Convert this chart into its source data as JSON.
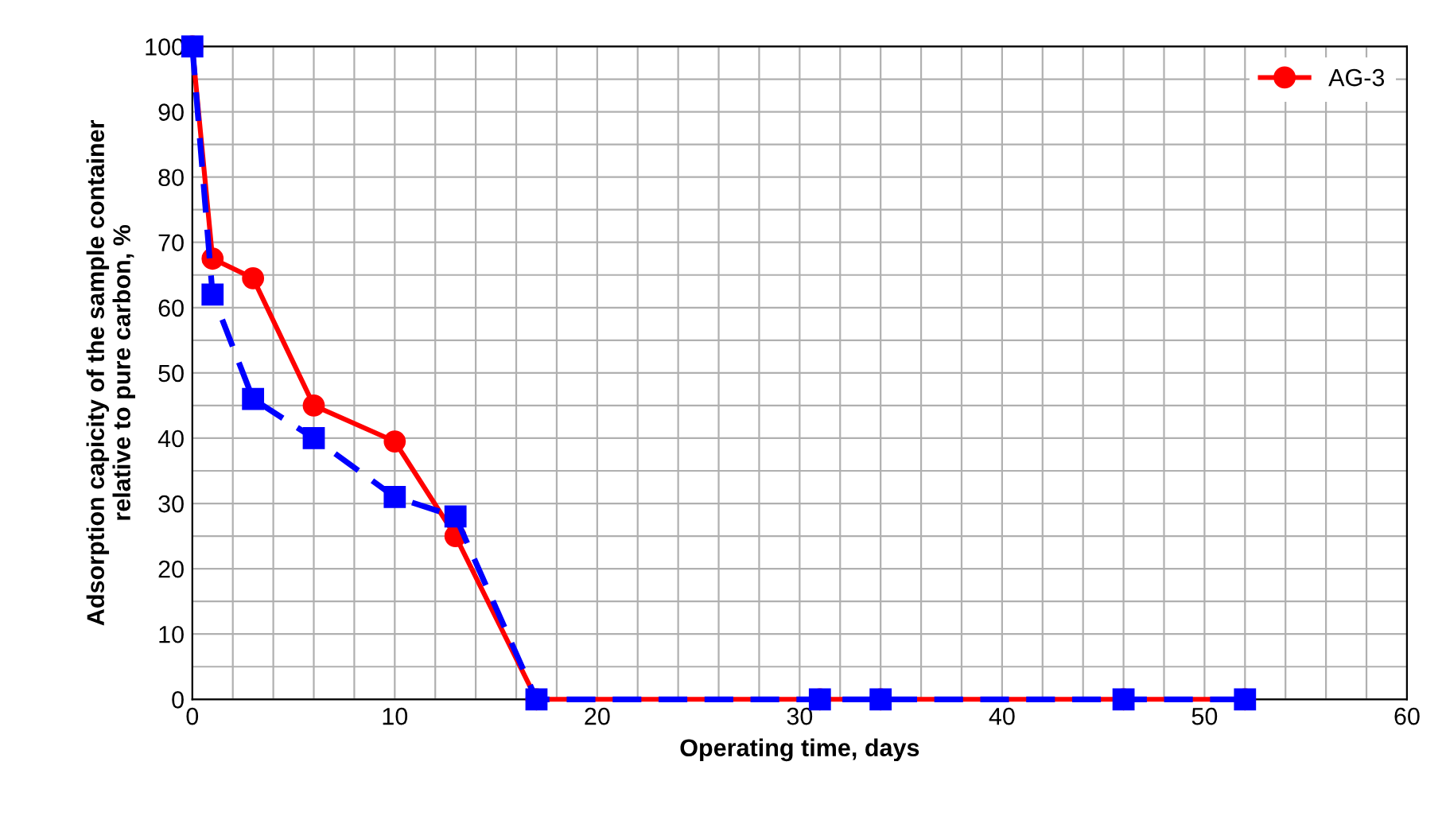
{
  "chart_data": {
    "type": "line",
    "xlabel": "Operating time, days",
    "ylabel": "Adsorption capicity of the sample container\nrelative to pure carbon, %",
    "xlim": [
      0,
      60
    ],
    "ylim": [
      0,
      100
    ],
    "xticks": [
      0,
      {
        "value": 2,
        "label": null
      },
      {
        "value": 4,
        "label": null
      },
      {
        "value": 6,
        "label": null
      },
      {
        "value": 8,
        "label": null
      },
      10,
      {
        "value": 12,
        "label": null
      },
      {
        "value": 14,
        "label": null
      },
      {
        "value": 16,
        "label": null
      },
      {
        "value": 18,
        "label": null
      },
      20,
      {
        "value": 22,
        "label": null
      },
      {
        "value": 24,
        "label": null
      },
      {
        "value": 26,
        "label": null
      },
      {
        "value": 28,
        "label": null
      },
      30,
      {
        "value": 32,
        "label": null
      },
      {
        "value": 34,
        "label": null
      },
      {
        "value": 36,
        "label": null
      },
      {
        "value": 38,
        "label": null
      },
      40,
      {
        "value": 42,
        "label": null
      },
      {
        "value": 44,
        "label": null
      },
      {
        "value": 46,
        "label": null
      },
      {
        "value": 48,
        "label": null
      },
      50,
      {
        "value": 52,
        "label": null
      },
      {
        "value": 54,
        "label": null
      },
      {
        "value": 56,
        "label": null
      },
      {
        "value": 58,
        "label": null
      },
      60
    ],
    "yticks": [
      0,
      {
        "value": 5,
        "label": null
      },
      10,
      {
        "value": 15,
        "label": null
      },
      20,
      {
        "value": 25,
        "label": null
      },
      30,
      {
        "value": 35,
        "label": null
      },
      40,
      {
        "value": 45,
        "label": null
      },
      50,
      {
        "value": 55,
        "label": null
      },
      60,
      {
        "value": 65,
        "label": null
      },
      70,
      {
        "value": 75,
        "label": null
      },
      80,
      {
        "value": 85,
        "label": null
      },
      90,
      {
        "value": 95,
        "label": null
      },
      100
    ],
    "grid": true,
    "legend": "top right",
    "series": [
      {
        "name": "AG-3",
        "color": "#ff0000",
        "marker": "circle",
        "line_style": "solid",
        "x": [
          0,
          1,
          3,
          6,
          10,
          13,
          17,
          31,
          34,
          46,
          52
        ],
        "values": [
          100,
          67.5,
          64.5,
          45,
          39.5,
          25,
          0,
          0,
          0,
          0,
          0
        ]
      },
      {
        "color": "#0000ff",
        "marker": "square",
        "line_style": "dashed",
        "x": [
          0,
          1,
          3,
          6,
          10,
          13,
          17,
          31,
          34,
          46,
          52
        ],
        "values": [
          100,
          62,
          46,
          40,
          31,
          28,
          0,
          0,
          0,
          0,
          0
        ]
      }
    ]
  }
}
